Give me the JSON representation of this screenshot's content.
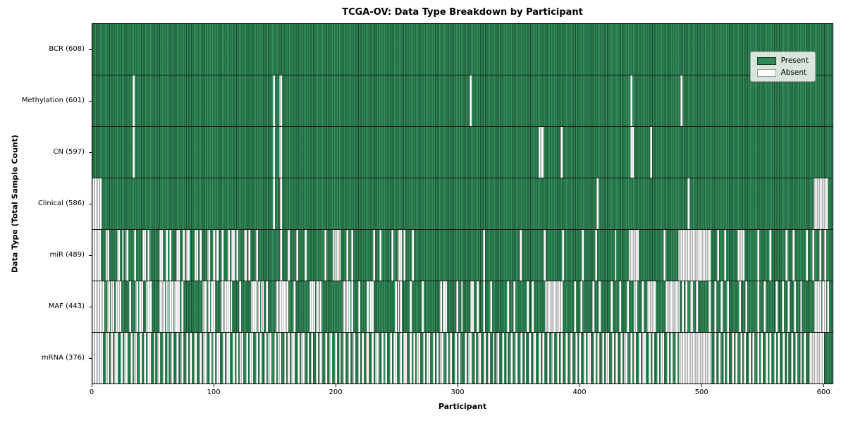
{
  "chart_data": {
    "type": "heatmap",
    "title": "TCGA-OV: Data Type Breakdown by Participant",
    "xlabel": "Participant",
    "ylabel": "Data Type (Total Sample Count)",
    "x_ticks": [
      0,
      100,
      200,
      300,
      400,
      500,
      600
    ],
    "x_range": [
      0,
      608
    ],
    "n_participants": 608,
    "grid": false,
    "legend_position": "upper right",
    "legend": [
      {
        "label": "Present",
        "color": "#2e8b57"
      },
      {
        "label": "Absent",
        "color": "#ffffff"
      }
    ],
    "colors": {
      "present": "#2e8b57",
      "bar_edge": "#133f26",
      "absent": "#ffffff",
      "absent_edge": "#787878",
      "row_divider": "#000000"
    },
    "rows": [
      {
        "label": "BCR (608)",
        "name": "bcr",
        "present_count": 608,
        "absent": []
      },
      {
        "label": "Methylation (601)",
        "name": "methylation",
        "present_count": 601,
        "absent": [
          33,
          148,
          153,
          154,
          309,
          441,
          482
        ]
      },
      {
        "label": "CN (597)",
        "name": "cn",
        "present_count": 597,
        "absent": [
          33,
          148,
          153,
          154,
          366,
          367,
          368,
          384,
          441,
          442,
          457
        ]
      },
      {
        "label": "Clinical (586)",
        "name": "clinical",
        "present_count": 586,
        "absent": [
          0,
          1,
          2,
          3,
          4,
          5,
          6,
          148,
          154,
          413,
          488,
          591,
          592,
          593,
          594,
          595,
          596,
          597,
          598,
          599,
          600,
          601
        ]
      },
      {
        "label": "miR (489)",
        "name": "mir",
        "present_count": 489,
        "absent": [
          0,
          1,
          2,
          3,
          4,
          5,
          11,
          12,
          20,
          21,
          24,
          27,
          28,
          34,
          41,
          42,
          45,
          55,
          56,
          60,
          63,
          69,
          70,
          74,
          77,
          78,
          84,
          85,
          88,
          94,
          95,
          99,
          101,
          102,
          106,
          111,
          114,
          115,
          118,
          124,
          125,
          128,
          134,
          154,
          160,
          167,
          174,
          190,
          197,
          198,
          199,
          200,
          201,
          202,
          208,
          212,
          230,
          235,
          245,
          250,
          251,
          252,
          255,
          262,
          320,
          350,
          370,
          385,
          401,
          412,
          428,
          440,
          441,
          442,
          443,
          444,
          445,
          446,
          468,
          480,
          481,
          482,
          483,
          484,
          485,
          486,
          487,
          488,
          489,
          490,
          491,
          492,
          493,
          494,
          495,
          496,
          497,
          499,
          500,
          501,
          502,
          503,
          504,
          505,
          512,
          518,
          529,
          530,
          531,
          532,
          533,
          545,
          555,
          568,
          574,
          585,
          590,
          596,
          600
        ]
      },
      {
        "label": "MAF (443)",
        "name": "maf",
        "present_count": 443,
        "absent": [
          0,
          1,
          2,
          3,
          4,
          5,
          6,
          7,
          8,
          12,
          13,
          15,
          16,
          19,
          20,
          22,
          30,
          35,
          36,
          38,
          40,
          44,
          45,
          47,
          55,
          56,
          57,
          58,
          60,
          61,
          63,
          65,
          67,
          68,
          70,
          73,
          90,
          91,
          92,
          95,
          97,
          99,
          105,
          106,
          108,
          110,
          111,
          113,
          120,
          130,
          131,
          133,
          135,
          136,
          138,
          139,
          142,
          150,
          151,
          153,
          155,
          156,
          158,
          159,
          165,
          178,
          179,
          181,
          183,
          184,
          186,
          205,
          206,
          208,
          210,
          212,
          218,
          225,
          227,
          229,
          248,
          250,
          252,
          260,
          270,
          285,
          287,
          289,
          298,
          302,
          310,
          311,
          315,
          320,
          326,
          340,
          345,
          356,
          360,
          371,
          372,
          373,
          374,
          375,
          376,
          377,
          378,
          379,
          380,
          381,
          382,
          383,
          384,
          395,
          400,
          410,
          415,
          425,
          432,
          438,
          444,
          445,
          450,
          455,
          456,
          457,
          458,
          459,
          460,
          470,
          471,
          472,
          473,
          474,
          475,
          476,
          477,
          478,
          479,
          480,
          483,
          486,
          490,
          491,
          495,
          505,
          510,
          515,
          520,
          530,
          535,
          545,
          550,
          560,
          565,
          570,
          575,
          580,
          592,
          593,
          594,
          596,
          598,
          600,
          602
        ]
      },
      {
        "label": "mRNA (376)",
        "name": "mrna",
        "present_count": 376,
        "absent": [
          0,
          1,
          2,
          3,
          4,
          5,
          6,
          7,
          11,
          12,
          15,
          18,
          19,
          23,
          26,
          27,
          31,
          34,
          35,
          39,
          42,
          45,
          46,
          50,
          53,
          54,
          58,
          61,
          64,
          65,
          69,
          72,
          73,
          77,
          80,
          83,
          84,
          88,
          91,
          92,
          96,
          99,
          102,
          103,
          107,
          110,
          111,
          115,
          118,
          121,
          122,
          126,
          129,
          130,
          134,
          137,
          141,
          144,
          145,
          149,
          152,
          153,
          157,
          160,
          163,
          164,
          168,
          171,
          172,
          176,
          179,
          183,
          186,
          187,
          191,
          194,
          195,
          199,
          202,
          205,
          206,
          210,
          213,
          214,
          218,
          221,
          224,
          225,
          229,
          232,
          233,
          237,
          240,
          244,
          247,
          248,
          252,
          255,
          256,
          260,
          263,
          266,
          267,
          271,
          274,
          275,
          279,
          282,
          285,
          286,
          290,
          293,
          297,
          300,
          305,
          308,
          309,
          313,
          316,
          317,
          321,
          324,
          328,
          331,
          332,
          336,
          339,
          343,
          346,
          347,
          351,
          354,
          358,
          361,
          362,
          366,
          369,
          373,
          376,
          377,
          381,
          384,
          388,
          391,
          392,
          396,
          399,
          403,
          406,
          407,
          411,
          414,
          418,
          421,
          422,
          426,
          429,
          433,
          436,
          437,
          441,
          444,
          448,
          451,
          452,
          456,
          459,
          463,
          466,
          467,
          471,
          474,
          478,
          481,
          482,
          483,
          484,
          485,
          486,
          487,
          488,
          489,
          490,
          491,
          492,
          493,
          494,
          495,
          496,
          497,
          498,
          499,
          500,
          501,
          502,
          503,
          504,
          505,
          506,
          510,
          513,
          517,
          520,
          524,
          527,
          531,
          534,
          538,
          541,
          545,
          548,
          552,
          555,
          559,
          562,
          566,
          569,
          573,
          576,
          580,
          583,
          588,
          589,
          590,
          591,
          592,
          593,
          594,
          595,
          596,
          597,
          598
        ]
      }
    ]
  }
}
